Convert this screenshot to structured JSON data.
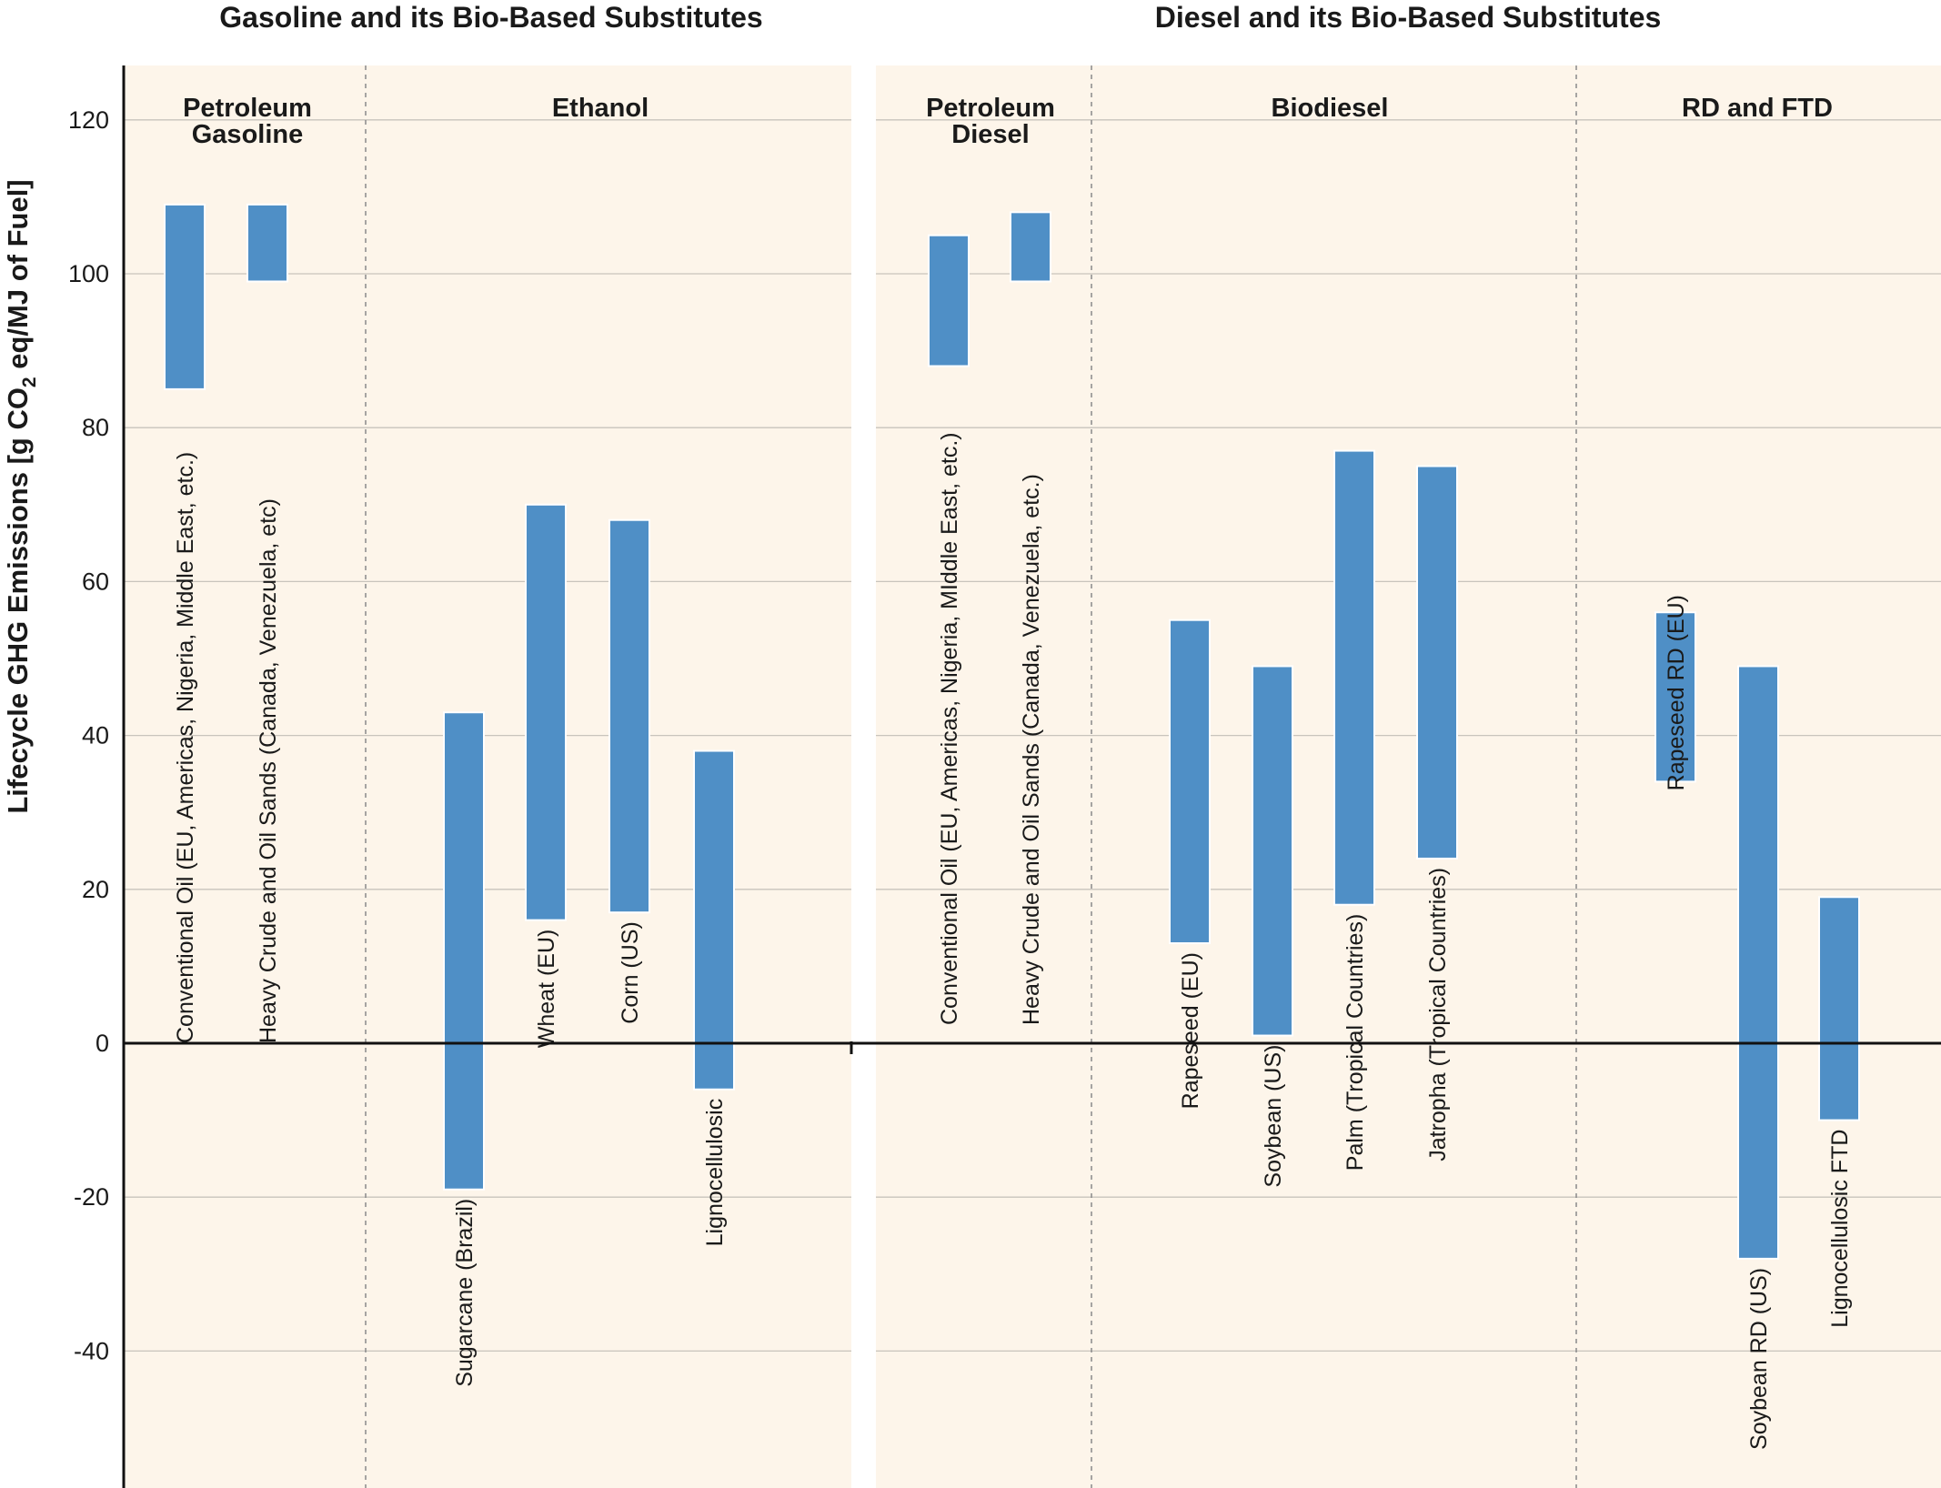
{
  "chart_data": {
    "type": "bar",
    "subtype": "floating-range",
    "ylabel": "Lifecycle GHG Emissions [g CO",
    "ylabel_sub": "2",
    "ylabel_tail": " eq/MJ of Fuel]",
    "ylim": [
      -58,
      126
    ],
    "yticks": [
      120,
      100,
      80,
      60,
      40,
      20,
      0,
      -20,
      -40
    ],
    "grid": true,
    "colors": {
      "bar": "#4f8fc6",
      "panel_background": "#fdf5ea",
      "grid": "#c8c4bc"
    },
    "panels": [
      {
        "title": "Gasoline and its Bio-Based Substitutes",
        "groups": [
          {
            "title_lines": [
              "Petroleum",
              "Gasoline"
            ]
          },
          {
            "title_lines": [
              "Ethanol"
            ]
          }
        ],
        "bars": [
          {
            "label": "Conventional Oil (EU, Americas, Nigeria, Middle East, etc.)",
            "group": 0,
            "low": 85,
            "high": 109
          },
          {
            "label": "Heavy Crude and Oil Sands (Canada, Venezuela, etc)",
            "group": 0,
            "low": 99,
            "high": 109
          },
          {
            "label": "Sugarcane (Brazil)",
            "group": 1,
            "low": -19,
            "high": 43
          },
          {
            "label": "Wheat (EU)",
            "group": 1,
            "low": 16,
            "high": 70
          },
          {
            "label": "Corn (US)",
            "group": 1,
            "low": 17,
            "high": 68
          },
          {
            "label": "Lignocellulosic",
            "group": 1,
            "low": -6,
            "high": 38
          }
        ]
      },
      {
        "title": "Diesel and its Bio-Based Substitutes",
        "groups": [
          {
            "title_lines": [
              "Petroleum",
              "Diesel"
            ]
          },
          {
            "title_lines": [
              "Biodiesel"
            ]
          },
          {
            "title_lines": [
              "RD and FTD"
            ]
          }
        ],
        "bars": [
          {
            "label": "Conventional Oil (EU, Americas, Nigeria, MIddle East, etc.)",
            "group": 0,
            "low": 88,
            "high": 105
          },
          {
            "label": "Heavy Crude and Oil Sands (Canada, Venezuela, etc.)",
            "group": 0,
            "low": 99,
            "high": 108
          },
          {
            "label": "Rapeseed (EU)",
            "group": 1,
            "low": 13,
            "high": 55
          },
          {
            "label": "Soybean (US)",
            "group": 1,
            "low": 1,
            "high": 49
          },
          {
            "label": "Palm (Tropical Countries)",
            "group": 1,
            "low": 18,
            "high": 77
          },
          {
            "label": "Jatropha (Tropical Countries)",
            "group": 1,
            "low": 24,
            "high": 75
          },
          {
            "label": "Rapeseed RD (EU)",
            "group": 2,
            "low": 34,
            "high": 56
          },
          {
            "label": "Soybean RD (US)",
            "group": 2,
            "low": -28,
            "high": 49
          },
          {
            "label": "Lignocellulosic FTD",
            "group": 2,
            "low": -10,
            "high": 19
          }
        ]
      }
    ]
  }
}
